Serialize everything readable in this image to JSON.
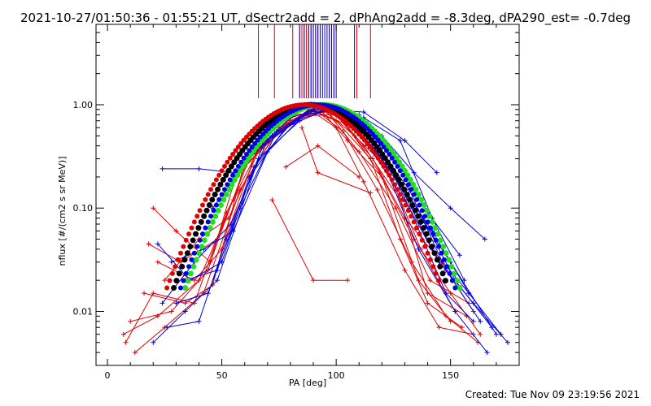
{
  "header": {
    "title": "2021-10-27/01:50:36 - 01:55:21 UT, dSectr2add = 2, dPhAng2add = -8.3deg, dPA290_est= -0.7deg"
  },
  "footer": {
    "created": "Created: Tue Nov 09 23:19:56 2021"
  },
  "chart_data": {
    "type": "line",
    "title": "2021-10-27/01:50:36 - 01:55:21 UT, dSectr2add = 2, dPhAng2add = -8.3deg, dPA290_est= -0.7deg",
    "xlabel": "PA [deg]",
    "ylabel": "nflux [#/(cm2 s sr MeV)]",
    "xlim": [
      -5,
      180
    ],
    "ylim": [
      0.003,
      6
    ],
    "yscale": "log",
    "x_ticks": [
      0,
      50,
      100,
      150
    ],
    "x_tick_labels": [
      "0",
      "50",
      "100",
      "150"
    ],
    "y_ticks": [
      0.01,
      0.1,
      1.0
    ],
    "y_tick_labels": [
      "0.01",
      "0.10",
      "1.00"
    ],
    "grid": false,
    "colors": {
      "red": "#e00000",
      "blue": "#0000e0",
      "black": "#000000",
      "green": "#20e020"
    },
    "vertical_markers": {
      "red": [
        66,
        73,
        81,
        84,
        85,
        86,
        87,
        88,
        89,
        90,
        91,
        92,
        97,
        99,
        109,
        115
      ],
      "blue": [
        84,
        86,
        88,
        89,
        90,
        91,
        92,
        93,
        94,
        95,
        96,
        97,
        98,
        99,
        100,
        108
      ]
    },
    "model_curves": [
      {
        "color": "black",
        "center": 89,
        "sigma": 21
      },
      {
        "color": "green",
        "center": 94,
        "sigma": 21
      },
      {
        "color": "blue",
        "center": 92,
        "sigma": 21
      },
      {
        "color": "red",
        "center": 86,
        "sigma": 21
      }
    ],
    "series": [
      {
        "color": "red",
        "x": [
          7,
          22,
          40,
          55,
          73,
          88,
          100,
          115,
          128,
          140,
          155
        ],
        "y": [
          0.006,
          0.009,
          0.02,
          0.12,
          0.5,
          0.9,
          0.7,
          0.3,
          0.05,
          0.012,
          0.007
        ]
      },
      {
        "color": "red",
        "x": [
          12,
          25,
          42,
          58,
          75,
          90,
          103,
          118,
          133,
          148,
          162
        ],
        "y": [
          0.004,
          0.007,
          0.015,
          0.15,
          0.6,
          0.92,
          0.55,
          0.15,
          0.03,
          0.009,
          0.005
        ]
      },
      {
        "color": "red",
        "x": [
          20,
          30,
          45,
          60,
          80,
          92,
          105,
          120,
          136,
          150
        ],
        "y": [
          0.1,
          0.06,
          0.03,
          0.25,
          0.7,
          0.95,
          0.45,
          0.2,
          0.02,
          0.008
        ]
      },
      {
        "color": "red",
        "x": [
          18,
          32,
          48,
          62,
          78,
          95,
          108,
          122,
          137,
          152
        ],
        "y": [
          0.045,
          0.03,
          0.05,
          0.3,
          0.65,
          0.88,
          0.5,
          0.25,
          0.04,
          0.01
        ]
      },
      {
        "color": "red",
        "x": [
          8,
          20,
          38,
          52,
          70,
          86,
          100,
          112,
          130,
          145,
          160
        ],
        "y": [
          0.005,
          0.015,
          0.012,
          0.09,
          0.55,
          0.97,
          0.6,
          0.18,
          0.025,
          0.007,
          0.006
        ]
      },
      {
        "color": "red",
        "x": [
          72,
          90,
          105
        ],
        "y": [
          0.12,
          0.02,
          0.02
        ]
      },
      {
        "color": "red",
        "x": [
          78,
          92,
          110
        ],
        "y": [
          0.25,
          0.4,
          0.2
        ]
      },
      {
        "color": "red",
        "x": [
          85,
          92,
          115
        ],
        "y": [
          0.6,
          0.22,
          0.14
        ]
      },
      {
        "color": "red",
        "x": [
          22,
          38,
          50,
          65,
          84,
          98,
          112,
          128,
          140,
          157
        ],
        "y": [
          0.03,
          0.02,
          0.04,
          0.35,
          0.75,
          0.93,
          0.4,
          0.12,
          0.015,
          0.009
        ]
      },
      {
        "color": "red",
        "x": [
          10,
          28,
          44,
          56,
          74,
          89,
          104,
          119,
          134,
          150,
          163
        ],
        "y": [
          0.008,
          0.01,
          0.025,
          0.2,
          0.55,
          0.9,
          0.65,
          0.22,
          0.05,
          0.015,
          0.006
        ]
      },
      {
        "color": "red",
        "x": [
          16,
          34,
          46,
          60,
          82,
          96,
          110,
          126,
          141,
          158
        ],
        "y": [
          0.015,
          0.012,
          0.018,
          0.28,
          0.8,
          0.85,
          0.35,
          0.1,
          0.02,
          0.012
        ]
      },
      {
        "color": "red",
        "x": [
          25,
          40,
          53,
          67,
          85,
          100,
          116,
          130,
          146,
          160
        ],
        "y": [
          0.02,
          0.05,
          0.08,
          0.4,
          0.78,
          0.8,
          0.3,
          0.08,
          0.03,
          0.01
        ]
      },
      {
        "color": "blue",
        "x": [
          24,
          40,
          56,
          72,
          90,
          106,
          120,
          134,
          150,
          165
        ],
        "y": [
          0.24,
          0.24,
          0.22,
          0.5,
          0.95,
          0.85,
          0.5,
          0.22,
          0.1,
          0.05
        ]
      },
      {
        "color": "blue",
        "x": [
          22,
          36,
          50,
          64,
          80,
          94,
          110,
          126,
          142,
          158,
          172
        ],
        "y": [
          0.045,
          0.02,
          0.03,
          0.25,
          0.65,
          0.97,
          0.55,
          0.2,
          0.04,
          0.015,
          0.006
        ]
      },
      {
        "color": "blue",
        "x": [
          28,
          42,
          55,
          70,
          86,
          100,
          114,
          130,
          145,
          160,
          175
        ],
        "y": [
          0.03,
          0.04,
          0.06,
          0.35,
          0.8,
          0.9,
          0.4,
          0.12,
          0.03,
          0.012,
          0.005
        ]
      },
      {
        "color": "blue",
        "x": [
          20,
          34,
          48,
          66,
          84,
          98,
          116,
          132,
          148,
          163
        ],
        "y": [
          0.005,
          0.01,
          0.02,
          0.3,
          0.7,
          0.93,
          0.45,
          0.15,
          0.025,
          0.008
        ]
      },
      {
        "color": "blue",
        "x": [
          30,
          44,
          58,
          74,
          92,
          108,
          124,
          138,
          152,
          168
        ],
        "y": [
          0.012,
          0.015,
          0.1,
          0.55,
          0.96,
          0.7,
          0.25,
          0.08,
          0.02,
          0.007
        ]
      },
      {
        "color": "blue",
        "x": [
          26,
          40,
          52,
          68,
          88,
          102,
          118,
          134,
          150,
          170
        ],
        "y": [
          0.007,
          0.008,
          0.05,
          0.4,
          0.85,
          0.88,
          0.35,
          0.1,
          0.03,
          0.006
        ]
      },
      {
        "color": "blue",
        "x": [
          46,
          64,
          80,
          96,
          112,
          128,
          142,
          156
        ],
        "y": [
          0.1,
          0.35,
          0.75,
          0.95,
          0.75,
          0.45,
          0.08,
          0.02
        ]
      },
      {
        "color": "blue",
        "x": [
          34,
          48,
          62,
          78,
          96,
          112,
          126,
          142,
          158
        ],
        "y": [
          0.02,
          0.025,
          0.2,
          0.6,
          0.92,
          0.6,
          0.2,
          0.06,
          0.015
        ]
      },
      {
        "color": "blue",
        "x": [
          24,
          38,
          54,
          70,
          90,
          104,
          120,
          136,
          152,
          166
        ],
        "y": [
          0.012,
          0.03,
          0.07,
          0.45,
          0.9,
          0.8,
          0.3,
          0.04,
          0.01,
          0.004
        ]
      },
      {
        "color": "blue",
        "x": [
          110,
          126,
          140,
          154
        ],
        "y": [
          0.8,
          0.3,
          0.09,
          0.035
        ]
      },
      {
        "color": "blue",
        "x": [
          100,
          118,
          132,
          148,
          160
        ],
        "y": [
          0.95,
          0.45,
          0.1,
          0.015,
          0.008
        ]
      },
      {
        "color": "blue",
        "x": [
          94,
          112,
          130,
          144
        ],
        "y": [
          0.9,
          0.85,
          0.45,
          0.22
        ]
      }
    ]
  }
}
